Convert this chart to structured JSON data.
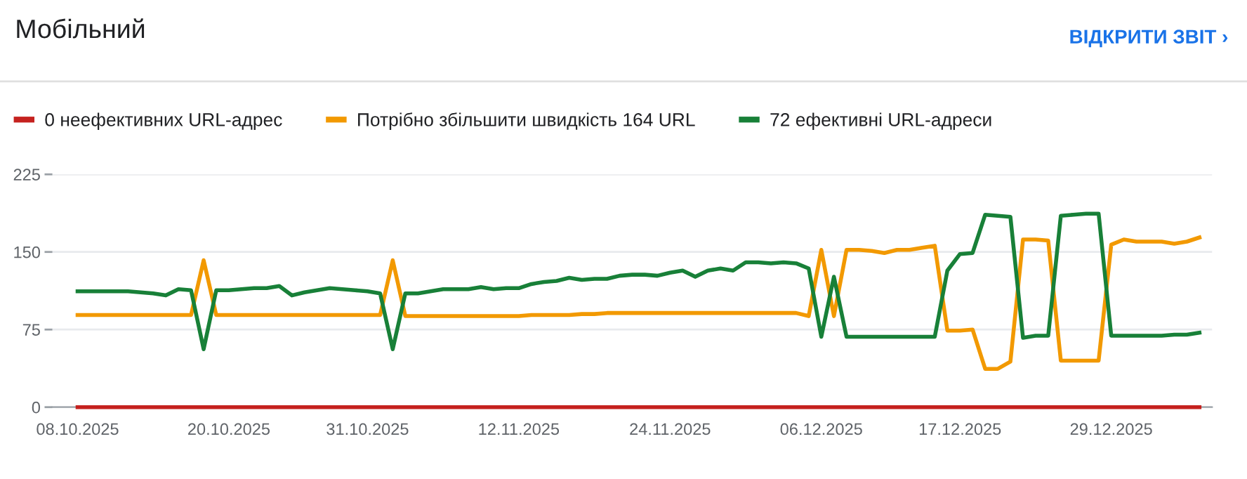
{
  "chart_data": {
    "type": "line",
    "title": "Мобільний",
    "annotations": [
      "ВІДКРИТИ ЗВІТ ›"
    ],
    "x": [
      "2025-10-08",
      "2025-10-09",
      "2025-10-10",
      "2025-10-11",
      "2025-10-12",
      "2025-10-13",
      "2025-10-14",
      "2025-10-15",
      "2025-10-16",
      "2025-10-17",
      "2025-10-18",
      "2025-10-19",
      "2025-10-20",
      "2025-10-21",
      "2025-10-22",
      "2025-10-23",
      "2025-10-24",
      "2025-10-25",
      "2025-10-26",
      "2025-10-27",
      "2025-10-28",
      "2025-10-29",
      "2025-10-30",
      "2025-10-31",
      "2025-11-01",
      "2025-11-02",
      "2025-11-03",
      "2025-11-04",
      "2025-11-05",
      "2025-11-06",
      "2025-11-07",
      "2025-11-08",
      "2025-11-09",
      "2025-11-10",
      "2025-11-11",
      "2025-11-12",
      "2025-11-13",
      "2025-11-14",
      "2025-11-15",
      "2025-11-16",
      "2025-11-17",
      "2025-11-18",
      "2025-11-19",
      "2025-11-20",
      "2025-11-21",
      "2025-11-22",
      "2025-11-23",
      "2025-11-24",
      "2025-11-25",
      "2025-11-26",
      "2025-11-27",
      "2025-11-28",
      "2025-11-29",
      "2025-11-30",
      "2025-12-01",
      "2025-12-02",
      "2025-12-03",
      "2025-12-04",
      "2025-12-05",
      "2025-12-06",
      "2025-12-07",
      "2025-12-08",
      "2025-12-09",
      "2025-12-10",
      "2025-12-11",
      "2025-12-12",
      "2025-12-13",
      "2025-12-14",
      "2025-12-15",
      "2025-12-16",
      "2025-12-17",
      "2025-12-18",
      "2025-12-19",
      "2025-12-20",
      "2025-12-21",
      "2025-12-22",
      "2025-12-23",
      "2025-12-24",
      "2025-12-25",
      "2025-12-26",
      "2025-12-27",
      "2025-12-28",
      "2025-12-29",
      "2025-12-30",
      "2025-12-31",
      "2026-01-01",
      "2026-01-02",
      "2026-01-03",
      "2026-01-04",
      "2026-01-05"
    ],
    "series": [
      {
        "name": "0 неефективних URL-адрес",
        "color": "#c5221f",
        "values": [
          0,
          0,
          0,
          0,
          0,
          0,
          0,
          0,
          0,
          0,
          0,
          0,
          0,
          0,
          0,
          0,
          0,
          0,
          0,
          0,
          0,
          0,
          0,
          0,
          0,
          0,
          0,
          0,
          0,
          0,
          0,
          0,
          0,
          0,
          0,
          0,
          0,
          0,
          0,
          0,
          0,
          0,
          0,
          0,
          0,
          0,
          0,
          0,
          0,
          0,
          0,
          0,
          0,
          0,
          0,
          0,
          0,
          0,
          0,
          0,
          0,
          0,
          0,
          0,
          0,
          0,
          0,
          0,
          0,
          0,
          0,
          0,
          0,
          0,
          0,
          0,
          0,
          0,
          0,
          0,
          0,
          0,
          0,
          0,
          0,
          0,
          0,
          0,
          0,
          0
        ]
      },
      {
        "name": "Потрібно збільшити швидкість 164 URL",
        "color": "#f29900",
        "values": [
          89,
          89,
          89,
          89,
          89,
          89,
          89,
          89,
          89,
          89,
          142,
          89,
          89,
          89,
          89,
          89,
          89,
          89,
          89,
          89,
          89,
          89,
          89,
          89,
          89,
          142,
          88,
          88,
          88,
          88,
          88,
          88,
          88,
          88,
          88,
          88,
          89,
          89,
          89,
          89,
          90,
          90,
          91,
          91,
          91,
          91,
          91,
          91,
          91,
          91,
          91,
          91,
          91,
          91,
          91,
          91,
          91,
          91,
          88,
          152,
          88,
          152,
          152,
          151,
          149,
          152,
          152,
          154,
          156,
          74,
          74,
          75,
          37,
          37,
          44,
          162,
          162,
          161,
          45,
          45,
          45,
          45,
          157,
          162,
          160,
          160,
          160,
          158,
          160,
          164
        ]
      },
      {
        "name": "72 ефективні URL-адреси",
        "color": "#188038",
        "values": [
          112,
          112,
          112,
          112,
          112,
          111,
          110,
          108,
          114,
          113,
          56,
          113,
          113,
          114,
          115,
          115,
          117,
          108,
          111,
          113,
          115,
          114,
          113,
          112,
          110,
          56,
          110,
          110,
          112,
          114,
          114,
          114,
          116,
          114,
          115,
          115,
          119,
          121,
          122,
          125,
          123,
          124,
          124,
          127,
          128,
          128,
          127,
          130,
          132,
          126,
          132,
          134,
          132,
          140,
          140,
          139,
          140,
          139,
          134,
          68,
          126,
          68,
          68,
          68,
          68,
          68,
          68,
          68,
          68,
          132,
          148,
          149,
          186,
          185,
          184,
          67,
          69,
          69,
          185,
          186,
          187,
          187,
          69,
          69,
          69,
          69,
          69,
          70,
          70,
          72
        ]
      }
    ],
    "xlim": [
      "2025-10-06",
      "2026-01-06"
    ],
    "xticks": [
      {
        "value": "2025-10-08",
        "label": "08.10.2025"
      },
      {
        "value": "2025-10-20",
        "label": "20.10.2025"
      },
      {
        "value": "2025-10-31",
        "label": "31.10.2025"
      },
      {
        "value": "2025-11-12",
        "label": "12.11.2025"
      },
      {
        "value": "2025-11-24",
        "label": "24.11.2025"
      },
      {
        "value": "2025-12-06",
        "label": "06.12.2025"
      },
      {
        "value": "2025-12-17",
        "label": "17.12.2025"
      },
      {
        "value": "2025-12-29",
        "label": "29.12.2025"
      }
    ],
    "ylim": [
      0,
      225
    ],
    "yticks": [
      0,
      75,
      150,
      225
    ],
    "grid": "y",
    "legend": "top left",
    "line_style": "solid"
  }
}
